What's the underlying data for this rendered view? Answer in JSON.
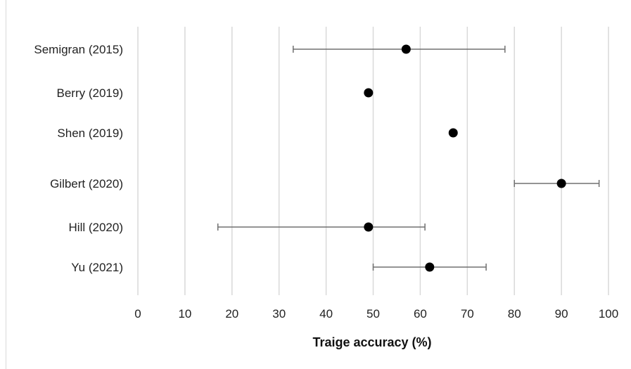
{
  "chart_data": {
    "type": "scatter",
    "title": "",
    "xlabel": "Traige accuracy (%)",
    "ylabel": "",
    "xlim": [
      0,
      100
    ],
    "xticks": [
      "0",
      "10",
      "20",
      "30",
      "40",
      "50",
      "60",
      "70",
      "80",
      "90",
      "100"
    ],
    "grid": "vertical",
    "legend": "none",
    "point_color": "#000000",
    "errorbar_color": "#707070",
    "categories": [
      "Semigran (2015)",
      "Berry (2019)",
      "Shen (2019)",
      "Gilbert (2020)",
      "Hill (2020)",
      "Yu (2021)"
    ],
    "points": [
      {
        "label": "Semigran (2015)",
        "x": 57,
        "low": 33,
        "high": 78
      },
      {
        "label": "Berry (2019)",
        "x": 49,
        "low": null,
        "high": null
      },
      {
        "label": "Shen (2019)",
        "x": 67,
        "low": null,
        "high": null
      },
      {
        "label": "Gilbert (2020)",
        "x": 90,
        "low": 80,
        "high": 98
      },
      {
        "label": "Hill (2020)",
        "x": 49,
        "low": 17,
        "high": 61
      },
      {
        "label": "Yu (2021)",
        "x": 62,
        "low": 50,
        "high": 74
      }
    ]
  }
}
